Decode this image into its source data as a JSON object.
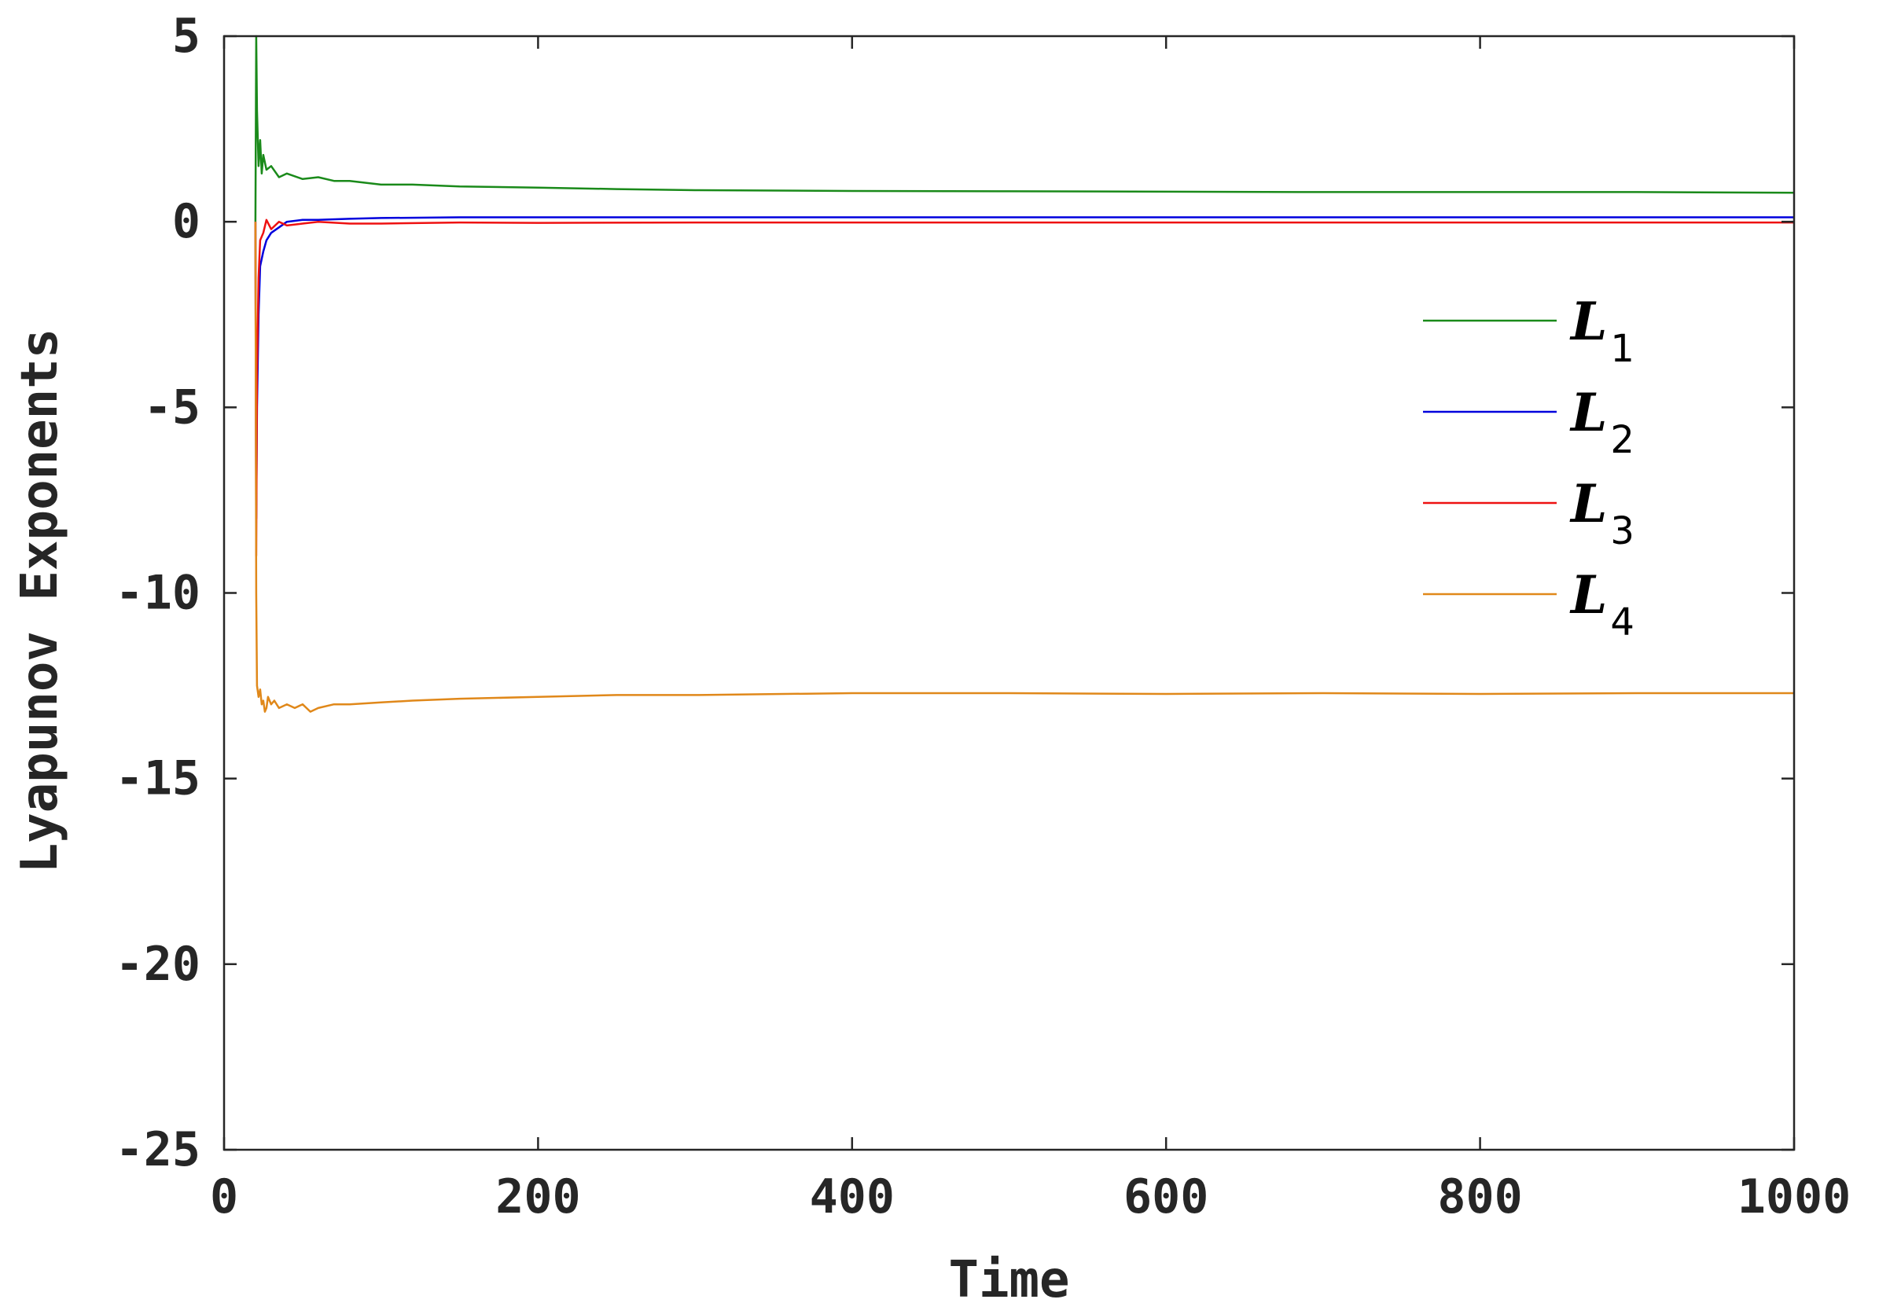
{
  "chart_data": {
    "type": "line",
    "title": "",
    "xlabel": "Time",
    "ylabel": "Lyapunov Exponents",
    "xlim": [
      0,
      1000
    ],
    "ylim": [
      -25,
      5
    ],
    "xticks": [
      0,
      200,
      400,
      600,
      800,
      1000
    ],
    "yticks": [
      -25,
      -20,
      -15,
      -10,
      -5,
      0,
      5
    ],
    "xtick_labels": [
      "0",
      "200",
      "400",
      "600",
      "800",
      "1000"
    ],
    "ytick_labels": [
      "-25",
      "-20",
      "-15",
      "-10",
      "-5",
      "0",
      "5"
    ],
    "grid": false,
    "legend_position": "right",
    "series": [
      {
        "name": "L1",
        "label_main": "L",
        "label_sub": "1",
        "color": "#1a8a1a",
        "x": [
          20,
          20.5,
          21,
          22,
          23,
          24,
          25,
          27,
          30,
          35,
          40,
          50,
          60,
          70,
          80,
          100,
          120,
          150,
          200,
          250,
          300,
          400,
          500,
          600,
          700,
          800,
          900,
          1000
        ],
        "y": [
          0,
          5,
          3,
          1.5,
          2.2,
          1.3,
          1.8,
          1.4,
          1.5,
          1.2,
          1.3,
          1.15,
          1.2,
          1.1,
          1.1,
          1.0,
          1.0,
          0.95,
          0.92,
          0.88,
          0.85,
          0.83,
          0.82,
          0.81,
          0.8,
          0.8,
          0.8,
          0.78
        ]
      },
      {
        "name": "L2",
        "label_main": "L",
        "label_sub": "2",
        "color": "#0000dd",
        "x": [
          20,
          20.5,
          21,
          22,
          23,
          25,
          27,
          30,
          35,
          40,
          50,
          60,
          80,
          100,
          150,
          200,
          300,
          400,
          500,
          600,
          700,
          800,
          900,
          1000
        ],
        "y": [
          0,
          -8,
          -5,
          -2.5,
          -1.2,
          -0.8,
          -0.5,
          -0.3,
          -0.15,
          0.0,
          0.05,
          0.05,
          0.08,
          0.1,
          0.12,
          0.12,
          0.12,
          0.12,
          0.12,
          0.12,
          0.12,
          0.12,
          0.12,
          0.12
        ]
      },
      {
        "name": "L3",
        "label_main": "L",
        "label_sub": "3",
        "color": "#ee1111",
        "x": [
          20,
          20.5,
          21,
          22,
          23,
          25,
          27,
          30,
          35,
          40,
          50,
          60,
          80,
          100,
          150,
          200,
          300,
          400,
          500,
          600,
          700,
          800,
          900,
          1000
        ],
        "y": [
          0,
          -9,
          -4,
          -1.5,
          -0.5,
          -0.3,
          0.05,
          -0.2,
          0.0,
          -0.1,
          -0.05,
          0.0,
          -0.05,
          -0.05,
          -0.02,
          -0.03,
          -0.02,
          -0.02,
          -0.02,
          -0.02,
          -0.02,
          -0.02,
          -0.02,
          -0.02
        ]
      },
      {
        "name": "L4",
        "label_main": "L",
        "label_sub": "4",
        "color": "#e0881a",
        "x": [
          20,
          20.5,
          21,
          22,
          23,
          24,
          25,
          26,
          27,
          28,
          30,
          32,
          35,
          40,
          45,
          50,
          55,
          60,
          70,
          80,
          100,
          120,
          150,
          200,
          250,
          300,
          400,
          500,
          600,
          700,
          800,
          900,
          1000
        ],
        "y": [
          0,
          -10,
          -12.5,
          -12.8,
          -12.6,
          -13.0,
          -12.9,
          -13.2,
          -13.1,
          -12.8,
          -13.0,
          -12.9,
          -13.1,
          -13.0,
          -13.1,
          -13.0,
          -13.2,
          -13.1,
          -13.0,
          -13.0,
          -12.95,
          -12.9,
          -12.85,
          -12.8,
          -12.75,
          -12.75,
          -12.7,
          -12.7,
          -12.72,
          -12.7,
          -12.72,
          -12.7,
          -12.7
        ]
      }
    ]
  }
}
